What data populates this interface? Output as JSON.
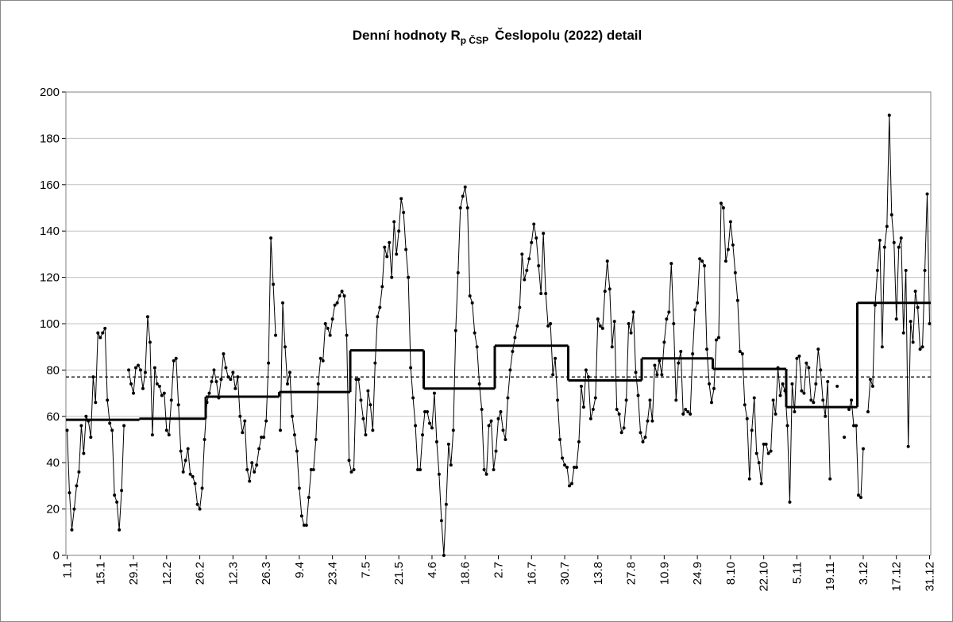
{
  "chart_data": {
    "type": "line",
    "title": "Denní hodnoty R",
    "title_subscript": "p ČSP",
    "title_rest": "Česlopolu (2022) detail",
    "categories": [
      "1.1",
      null,
      null,
      null,
      null,
      null,
      null,
      null,
      null,
      null,
      null,
      null,
      null,
      null,
      "15.1",
      null,
      null,
      null,
      null,
      null,
      null,
      null,
      null,
      null,
      null,
      null,
      null,
      null,
      "29.1",
      null,
      null,
      null,
      null,
      null,
      null,
      null,
      null,
      null,
      null,
      null,
      null,
      null,
      "12.2",
      null,
      null,
      null,
      null,
      null,
      null,
      null,
      null,
      null,
      null,
      null,
      null,
      null,
      "26.2",
      null,
      null,
      null,
      null,
      null,
      null,
      null,
      null,
      null,
      null,
      null,
      null,
      null,
      "12.3",
      null,
      null,
      null,
      null,
      null,
      null,
      null,
      null,
      null,
      null,
      null,
      null,
      null,
      "26.3",
      null,
      null,
      null,
      null,
      null,
      null,
      null,
      null,
      null,
      null,
      null,
      null,
      null,
      "9.4",
      null,
      null,
      null,
      null,
      null,
      null,
      null,
      null,
      null,
      null,
      null,
      null,
      null,
      "23.4",
      null,
      null,
      null,
      null,
      null,
      null,
      null,
      null,
      null,
      null,
      null,
      null,
      null,
      "7.5",
      null,
      null,
      null,
      null,
      null,
      null,
      null,
      null,
      null,
      null,
      null,
      null,
      null,
      "21.5",
      null,
      null,
      null,
      null,
      null,
      null,
      null,
      null,
      null,
      null,
      null,
      null,
      null,
      "4.6",
      null,
      null,
      null,
      null,
      null,
      null,
      null,
      null,
      null,
      null,
      null,
      null,
      null,
      "18.6",
      null,
      null,
      null,
      null,
      null,
      null,
      null,
      null,
      null,
      null,
      null,
      null,
      null,
      "2.7",
      null,
      null,
      null,
      null,
      null,
      null,
      null,
      null,
      null,
      null,
      null,
      null,
      null,
      "16.7",
      null,
      null,
      null,
      null,
      null,
      null,
      null,
      null,
      null,
      null,
      null,
      null,
      null,
      "30.7",
      null,
      null,
      null,
      null,
      null,
      null,
      null,
      null,
      null,
      null,
      null,
      null,
      null,
      "13.8",
      null,
      null,
      null,
      null,
      null,
      null,
      null,
      null,
      null,
      null,
      null,
      null,
      null,
      "27.8",
      null,
      null,
      null,
      null,
      null,
      null,
      null,
      null,
      null,
      null,
      null,
      null,
      null,
      "10.9",
      null,
      null,
      null,
      null,
      null,
      null,
      null,
      null,
      null,
      null,
      null,
      null,
      null,
      "24.9",
      null,
      null,
      null,
      null,
      null,
      null,
      null,
      null,
      null,
      null,
      null,
      null,
      null,
      "8.10",
      null,
      null,
      null,
      null,
      null,
      null,
      null,
      null,
      null,
      null,
      null,
      null,
      null,
      "22.10",
      null,
      null,
      null,
      null,
      null,
      null,
      null,
      null,
      null,
      null,
      null,
      null,
      null,
      "5.11",
      null,
      null,
      null,
      null,
      null,
      null,
      null,
      null,
      null,
      null,
      null,
      null,
      null,
      "19.11",
      null,
      null,
      null,
      null,
      null,
      null,
      null,
      null,
      null,
      null,
      null,
      null,
      null,
      "3.12",
      null,
      null,
      null,
      null,
      null,
      null,
      null,
      null,
      null,
      null,
      null,
      null,
      null,
      "17.12",
      null,
      null,
      null,
      null,
      null,
      null,
      null,
      null,
      null,
      null,
      null,
      null,
      null,
      "31.12"
    ],
    "series": [
      {
        "color": "#000000",
        "values": [
          54,
          27,
          11,
          20,
          30,
          36,
          56,
          44,
          60,
          58,
          51,
          77,
          66,
          96,
          94,
          96,
          98,
          67,
          57,
          54,
          26,
          23,
          11,
          28,
          56,
          null,
          80,
          74,
          70,
          81,
          82,
          80,
          72,
          79,
          103,
          92,
          52,
          81,
          74,
          73,
          69,
          70,
          54,
          52,
          67,
          84,
          85,
          65,
          45,
          36,
          41,
          46,
          35,
          34,
          31,
          22,
          20,
          29,
          50,
          66,
          70,
          75,
          80,
          75,
          68,
          76,
          87,
          81,
          77,
          76,
          79,
          72,
          77,
          60,
          53,
          58,
          37,
          32,
          40,
          36,
          39,
          46,
          51,
          51,
          58,
          83,
          137,
          117,
          95,
          null,
          54,
          109,
          90,
          74,
          79,
          60,
          52,
          45,
          29,
          17,
          13,
          13,
          25,
          37,
          37,
          50,
          74,
          85,
          84,
          100,
          98,
          95,
          102,
          108,
          109,
          112,
          114,
          112,
          95,
          41,
          36,
          37,
          76,
          76,
          67,
          59,
          52,
          71,
          65,
          54,
          83,
          103,
          107,
          116,
          133,
          129,
          135,
          120,
          144,
          130,
          140,
          154,
          148,
          132,
          120,
          81,
          68,
          56,
          37,
          37,
          52,
          62,
          62,
          57,
          55,
          70,
          49,
          35,
          15,
          0,
          22,
          48,
          39,
          54,
          97,
          122,
          150,
          155,
          159,
          150,
          112,
          109,
          96,
          90,
          74,
          63,
          37,
          35,
          56,
          58,
          37,
          45,
          59,
          62,
          54,
          50,
          68,
          80,
          88,
          94,
          99,
          107,
          130,
          119,
          123,
          128,
          135,
          143,
          137,
          125,
          113,
          139,
          113,
          99,
          100,
          78,
          85,
          67,
          50,
          42,
          39,
          38,
          30,
          31,
          38,
          38,
          49,
          73,
          64,
          80,
          77,
          59,
          63,
          68,
          102,
          99,
          98,
          114,
          127,
          115,
          90,
          101,
          63,
          61,
          53,
          55,
          67,
          100,
          96,
          105,
          79,
          69,
          53,
          49,
          51,
          58,
          67,
          58,
          82,
          78,
          84,
          78,
          92,
          102,
          105,
          126,
          100,
          67,
          83,
          88,
          61,
          63,
          62,
          61,
          87,
          106,
          109,
          128,
          127,
          125,
          89,
          74,
          66,
          72,
          93,
          94,
          152,
          150,
          127,
          132,
          144,
          134,
          122,
          110,
          88,
          87,
          65,
          59,
          33,
          54,
          68,
          44,
          40,
          31,
          48,
          48,
          44,
          45,
          67,
          61,
          81,
          69,
          74,
          71,
          56,
          23,
          74,
          62,
          85,
          86,
          71,
          70,
          83,
          81,
          67,
          66,
          74,
          89,
          80,
          67,
          60,
          75,
          33,
          null,
          null,
          73,
          null,
          null,
          51,
          null,
          63,
          67,
          56,
          56,
          26,
          25,
          46,
          null,
          62,
          76,
          73,
          108,
          123,
          136,
          90,
          133,
          142,
          190,
          147,
          135,
          102,
          133,
          137,
          96,
          123,
          47,
          101,
          92,
          114,
          107,
          89,
          90,
          123,
          156,
          100
        ]
      }
    ],
    "monthly_means": [
      58.5,
      59,
      68.5,
      70.5,
      88.5,
      72,
      90.5,
      75.5,
      85,
      80.5,
      64,
      109
    ],
    "mean": 77,
    "ylim": [
      0,
      200
    ],
    "yticks": [
      0,
      20,
      40,
      60,
      80,
      100,
      120,
      140,
      160,
      180,
      200
    ],
    "grid": true
  }
}
